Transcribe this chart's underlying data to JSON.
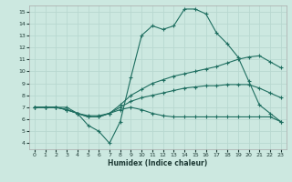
{
  "xlabel": "Humidex (Indice chaleur)",
  "bg_color": "#cce8e0",
  "grid_color": "#b8d8d0",
  "line_color": "#1e6e60",
  "xlim": [
    -0.5,
    23.5
  ],
  "ylim": [
    3.5,
    15.5
  ],
  "xticks": [
    0,
    1,
    2,
    3,
    4,
    5,
    6,
    7,
    8,
    9,
    10,
    11,
    12,
    13,
    14,
    15,
    16,
    17,
    18,
    19,
    20,
    21,
    22,
    23
  ],
  "yticks": [
    4,
    5,
    6,
    7,
    8,
    9,
    10,
    11,
    12,
    13,
    14,
    15
  ],
  "lines": [
    {
      "x": [
        0,
        1,
        2,
        3,
        4,
        5,
        6,
        7,
        8,
        9,
        10,
        11,
        12,
        13,
        14,
        15,
        16,
        17,
        18,
        19,
        20,
        21,
        22,
        23
      ],
      "y": [
        7.0,
        7.0,
        7.0,
        7.0,
        6.5,
        5.5,
        5.0,
        4.0,
        5.8,
        9.5,
        13.0,
        13.8,
        13.5,
        13.8,
        15.2,
        15.2,
        14.8,
        13.2,
        12.3,
        11.2,
        9.2,
        7.2,
        6.5,
        5.8
      ]
    },
    {
      "x": [
        0,
        1,
        2,
        3,
        4,
        5,
        6,
        7,
        8,
        9,
        10,
        11,
        12,
        13,
        14,
        15,
        16,
        17,
        18,
        19,
        20,
        21,
        22,
        23
      ],
      "y": [
        7.0,
        7.0,
        7.0,
        6.8,
        6.5,
        6.3,
        6.3,
        6.5,
        7.2,
        8.0,
        8.5,
        9.0,
        9.3,
        9.6,
        9.8,
        10.0,
        10.2,
        10.4,
        10.7,
        11.0,
        11.2,
        11.3,
        10.8,
        10.3
      ]
    },
    {
      "x": [
        0,
        1,
        2,
        3,
        4,
        5,
        6,
        7,
        8,
        9,
        10,
        11,
        12,
        13,
        14,
        15,
        16,
        17,
        18,
        19,
        20,
        21,
        22,
        23
      ],
      "y": [
        7.0,
        7.0,
        7.0,
        6.8,
        6.5,
        6.2,
        6.2,
        6.5,
        7.0,
        7.5,
        7.8,
        8.0,
        8.2,
        8.4,
        8.6,
        8.7,
        8.8,
        8.8,
        8.9,
        8.9,
        8.9,
        8.6,
        8.2,
        7.8
      ]
    },
    {
      "x": [
        0,
        1,
        2,
        3,
        4,
        5,
        6,
        7,
        8,
        9,
        10,
        11,
        12,
        13,
        14,
        15,
        16,
        17,
        18,
        19,
        20,
        21,
        22,
        23
      ],
      "y": [
        7.0,
        7.0,
        7.0,
        6.8,
        6.5,
        6.2,
        6.2,
        6.5,
        6.8,
        7.0,
        6.8,
        6.5,
        6.3,
        6.2,
        6.2,
        6.2,
        6.2,
        6.2,
        6.2,
        6.2,
        6.2,
        6.2,
        6.2,
        5.8
      ]
    }
  ]
}
